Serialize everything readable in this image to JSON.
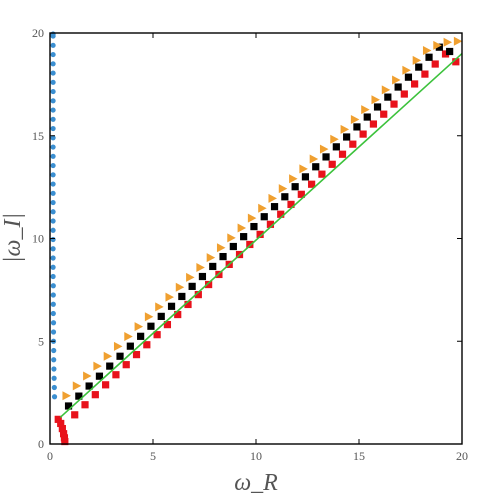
{
  "chart_data": {
    "type": "scatter",
    "title": "",
    "xlabel": "ω_R",
    "ylabel": "|ω_I|",
    "xlim": [
      0,
      20
    ],
    "ylim": [
      0,
      20
    ],
    "xticks": [
      "0",
      "5",
      "10",
      "15",
      "20"
    ],
    "yticks": [
      "0",
      "5",
      "10",
      "15",
      "20"
    ],
    "grid": false,
    "legend": "none",
    "series": [
      {
        "marker": "circle",
        "color": "#3b8fd1",
        "x": [
          0.22,
          0.21,
          0.2,
          0.19,
          0.18,
          0.18,
          0.17,
          0.17,
          0.17,
          0.16,
          0.16,
          0.16,
          0.16,
          0.15,
          0.15,
          0.15,
          0.15,
          0.15,
          0.15,
          0.15,
          0.15,
          0.15,
          0.15,
          0.15,
          0.15,
          0.15,
          0.15,
          0.15,
          0.15,
          0.15,
          0.15,
          0.15,
          0.15,
          0.15,
          0.15,
          0.15,
          0.15,
          0.15,
          0.15,
          0.15,
          0.15
        ],
        "y": [
          2.3,
          2.75,
          3.2,
          3.65,
          4.1,
          4.55,
          5.0,
          5.45,
          5.9,
          6.35,
          6.8,
          7.25,
          7.7,
          8.15,
          8.6,
          9.05,
          9.5,
          9.95,
          10.4,
          10.85,
          11.3,
          11.75,
          12.2,
          12.65,
          13.1,
          13.55,
          14.0,
          14.45,
          14.9,
          15.35,
          15.8,
          16.25,
          16.7,
          17.15,
          17.6,
          18.05,
          18.5,
          18.95,
          19.4,
          19.85,
          19.95
        ]
      },
      {
        "marker": "square",
        "color": "#e8121b",
        "x": [
          0.72,
          0.7,
          0.66,
          0.6,
          0.52,
          0.4
        ],
        "y": [
          0.12,
          0.3,
          0.5,
          0.75,
          1.0,
          1.2
        ]
      },
      {
        "marker": "square",
        "color": "#e8121b",
        "x": [
          1.2,
          1.7,
          2.2,
          2.7,
          3.2,
          3.7,
          4.2,
          4.7,
          5.2,
          5.7,
          6.2,
          6.7,
          7.2,
          7.7,
          8.2,
          8.7,
          9.2,
          9.7,
          10.2,
          10.7,
          11.2,
          11.7,
          12.2,
          12.7,
          13.2,
          13.7,
          14.2,
          14.7,
          15.2,
          15.7,
          16.2,
          16.7,
          17.2,
          17.7,
          18.2,
          18.7,
          19.2,
          19.7
        ],
        "y": [
          1.42,
          1.91,
          2.4,
          2.88,
          3.37,
          3.86,
          4.35,
          4.83,
          5.32,
          5.81,
          6.3,
          6.79,
          7.27,
          7.76,
          8.25,
          8.74,
          9.22,
          9.71,
          10.2,
          10.69,
          11.18,
          11.66,
          12.15,
          12.64,
          13.13,
          13.61,
          14.1,
          14.59,
          15.08,
          15.57,
          16.05,
          16.54,
          17.03,
          17.52,
          18.0,
          18.49,
          18.98,
          18.6
        ]
      },
      {
        "marker": "square",
        "color": "#000000",
        "x": [
          0.9,
          1.4,
          1.9,
          2.4,
          2.9,
          3.4,
          3.9,
          4.4,
          4.9,
          5.4,
          5.9,
          6.4,
          6.9,
          7.4,
          7.9,
          8.4,
          8.9,
          9.4,
          9.9,
          10.4,
          10.9,
          11.4,
          11.9,
          12.4,
          12.9,
          13.4,
          13.9,
          14.4,
          14.9,
          15.4,
          15.9,
          16.4,
          16.9,
          17.4,
          17.9,
          18.4,
          18.9,
          19.4
        ],
        "y": [
          1.85,
          2.33,
          2.82,
          3.3,
          3.79,
          4.27,
          4.76,
          5.24,
          5.73,
          6.21,
          6.7,
          7.18,
          7.67,
          8.15,
          8.64,
          9.12,
          9.61,
          10.09,
          10.58,
          11.06,
          11.55,
          12.03,
          12.52,
          13.0,
          13.49,
          13.97,
          14.46,
          14.94,
          15.43,
          15.91,
          16.4,
          16.88,
          17.37,
          17.85,
          18.34,
          18.82,
          19.31,
          19.1
        ]
      },
      {
        "marker": "triangle-right",
        "color": "#f0a030",
        "x": [
          0.8,
          1.3,
          1.8,
          2.3,
          2.8,
          3.3,
          3.8,
          4.3,
          4.8,
          5.3,
          5.8,
          6.3,
          6.8,
          7.3,
          7.8,
          8.3,
          8.8,
          9.3,
          9.8,
          10.3,
          10.8,
          11.3,
          11.8,
          12.3,
          12.8,
          13.3,
          13.8,
          14.3,
          14.8,
          15.3,
          15.8,
          16.3,
          16.8,
          17.3,
          17.8,
          18.3,
          18.8,
          19.3,
          19.8
        ],
        "y": [
          2.35,
          2.83,
          3.31,
          3.79,
          4.27,
          4.75,
          5.23,
          5.71,
          6.19,
          6.67,
          7.15,
          7.63,
          8.11,
          8.59,
          9.07,
          9.55,
          10.03,
          10.51,
          10.99,
          11.47,
          11.95,
          12.43,
          12.91,
          13.39,
          13.87,
          14.35,
          14.83,
          15.31,
          15.79,
          16.27,
          16.75,
          17.23,
          17.71,
          18.19,
          18.67,
          19.15,
          19.4,
          19.55,
          19.6
        ]
      },
      {
        "marker": "line",
        "color": "#3cc23c",
        "x": [
          0.5,
          20
        ],
        "y": [
          1.3,
          19.0
        ]
      }
    ]
  }
}
